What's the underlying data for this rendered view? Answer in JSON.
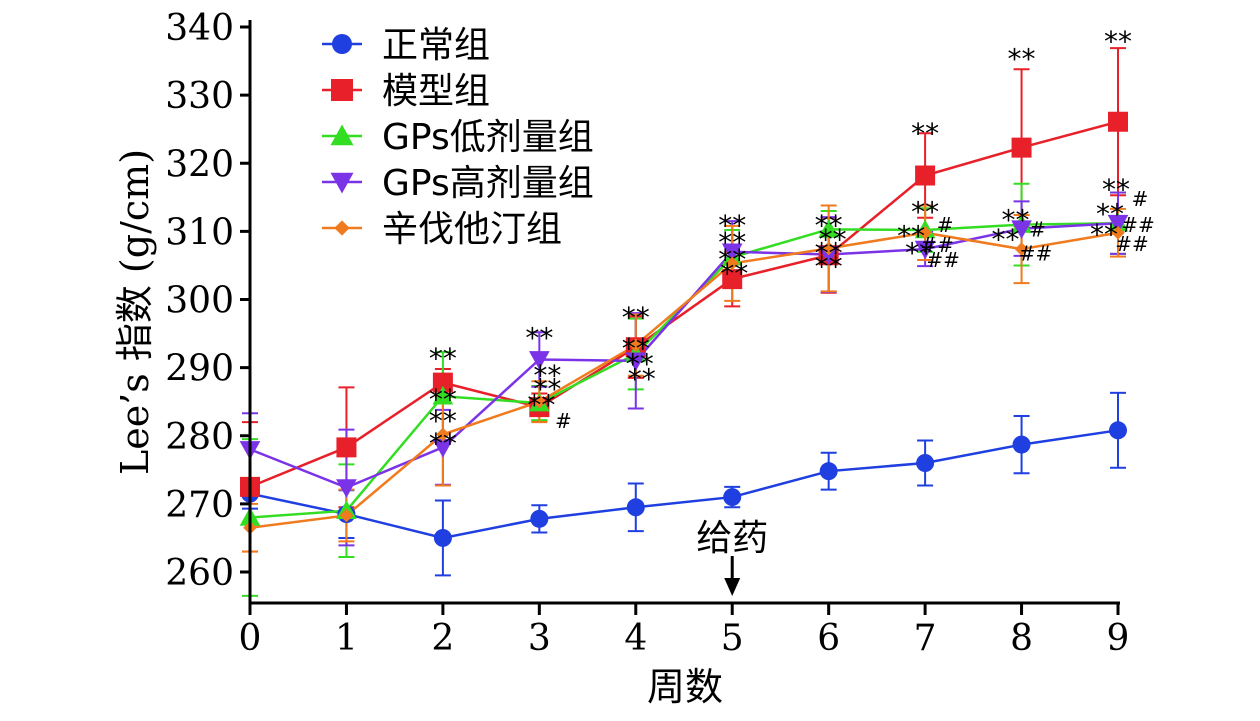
{
  "chart_data": {
    "type": "line",
    "xlabel": "周数",
    "ylabel": "Lee’s 指数 (g/cm)",
    "x": [
      0,
      1,
      2,
      3,
      4,
      5,
      6,
      7,
      8,
      9
    ],
    "xlim": [
      0,
      9
    ],
    "ylim": [
      255,
      340
    ],
    "yticks": [
      260,
      270,
      280,
      290,
      300,
      310,
      320,
      330,
      340
    ],
    "legend_position": "top-left",
    "annotation": {
      "text": "给药",
      "x": 5
    },
    "series": [
      {
        "name": "正常组",
        "color": "#1f3fe0",
        "marker": "circle",
        "values": [
          271.5,
          268.5,
          265,
          267.8,
          269.5,
          271,
          274.8,
          276,
          278.7,
          280.8
        ],
        "errors": [
          2.2,
          3.5,
          5.5,
          2.0,
          3.5,
          1.5,
          2.7,
          3.3,
          4.2,
          5.5
        ]
      },
      {
        "name": "模型组",
        "color": "#e8202a",
        "marker": "square",
        "values": [
          272.5,
          278.3,
          287.8,
          284.2,
          293,
          303,
          306.5,
          318.2,
          322.3,
          326.1
        ],
        "errors": [
          9.5,
          8.8,
          2.0,
          2.0,
          4.5,
          4.0,
          5.5,
          6.2,
          11.5,
          10.8
        ]
      },
      {
        "name": "GPs低剂量组",
        "color": "#33dd22",
        "marker": "triangle-up",
        "values": [
          268,
          269,
          285.8,
          284.8,
          292,
          306.2,
          310.3,
          310.2,
          311,
          311.2
        ],
        "errors": [
          11.5,
          6.8,
          6.5,
          2.5,
          5.2,
          4.0,
          2.7,
          3.2,
          6.0,
          4.5
        ]
      },
      {
        "name": "GPs高剂量组",
        "color": "#7b33e8",
        "marker": "triangle-down",
        "values": [
          278,
          272.4,
          278.3,
          291.2,
          291,
          307,
          306.6,
          307.4,
          310.4,
          311.2
        ],
        "errors": [
          5.3,
          8.5,
          5.5,
          4.0,
          7.0,
          4.5,
          5.5,
          2.5,
          4.0,
          4.5
        ]
      },
      {
        "name": "辛伐他汀组",
        "color": "#f07a1e",
        "marker": "diamond",
        "values": [
          266.5,
          268.3,
          280.2,
          285,
          293.3,
          305.3,
          307.5,
          309.8,
          307.4,
          309.8
        ],
        "errors": [
          3.5,
          3.8,
          7.5,
          3.0,
          4.5,
          5.5,
          6.3,
          4.0,
          5.0,
          3.5
        ]
      }
    ],
    "significance_labels": [
      {
        "x": 2,
        "y": 292.0,
        "text": "**",
        "dx": 0
      },
      {
        "x": 2,
        "y": 286.0,
        "text": "**",
        "dx": 0
      },
      {
        "x": 2,
        "y": 282.8,
        "text": "**",
        "dx": 0
      },
      {
        "x": 2,
        "y": 279.5,
        "text": "**",
        "dx": 0
      },
      {
        "x": 3,
        "y": 295.0,
        "text": "**",
        "dx": 0
      },
      {
        "x": 3,
        "y": 289.5,
        "text": "**",
        "dx": 8
      },
      {
        "x": 3,
        "y": 287.5,
        "text": "**",
        "dx": 8
      },
      {
        "x": 3,
        "y": 285.2,
        "text": "**",
        "dx": 2
      },
      {
        "x": 3,
        "y": 283.2,
        "text": "#",
        "dx": 24
      },
      {
        "x": 4,
        "y": 298.0,
        "text": "**",
        "dx": 0
      },
      {
        "x": 4,
        "y": 293.5,
        "text": "**",
        "dx": 0
      },
      {
        "x": 4,
        "y": 291.2,
        "text": "**",
        "dx": 4
      },
      {
        "x": 4,
        "y": 289.0,
        "text": "**",
        "dx": 6
      },
      {
        "x": 5,
        "y": 311.5,
        "text": "**",
        "dx": 0
      },
      {
        "x": 5,
        "y": 309.0,
        "text": "**",
        "dx": 0
      },
      {
        "x": 5,
        "y": 306.5,
        "text": "**",
        "dx": 0
      },
      {
        "x": 5,
        "y": 304.5,
        "text": "**",
        "dx": 2
      },
      {
        "x": 6,
        "y": 311.5,
        "text": "**",
        "dx": 0
      },
      {
        "x": 6,
        "y": 309.5,
        "text": "**",
        "dx": 4
      },
      {
        "x": 6,
        "y": 307.5,
        "text": "**",
        "dx": 0
      },
      {
        "x": 6,
        "y": 305.5,
        "text": "**",
        "dx": 0
      },
      {
        "x": 7,
        "y": 325.0,
        "text": "**",
        "dx": 0
      },
      {
        "x": 7,
        "y": 313.5,
        "text": "**",
        "dx": 0
      },
      {
        "x": 7,
        "y": 312.0,
        "text": "#",
        "dx": 20
      },
      {
        "x": 7,
        "y": 310.0,
        "text": "**",
        "dx": -14
      },
      {
        "x": 7,
        "y": 309.0,
        "text": "##",
        "dx": 12
      },
      {
        "x": 7,
        "y": 307.5,
        "text": "**",
        "dx": -6
      },
      {
        "x": 7,
        "y": 306.8,
        "text": "##",
        "dx": 18
      },
      {
        "x": 8,
        "y": 336.0,
        "text": "**",
        "dx": 0
      },
      {
        "x": 8,
        "y": 312.3,
        "text": "**",
        "dx": -6
      },
      {
        "x": 8,
        "y": 311.3,
        "text": "#",
        "dx": 16
      },
      {
        "x": 8,
        "y": 309.5,
        "text": "**",
        "dx": -16
      },
      {
        "x": 8,
        "y": 307.8,
        "text": "##",
        "dx": 14
      },
      {
        "x": 9,
        "y": 338.5,
        "text": "**",
        "dx": 0
      },
      {
        "x": 9,
        "y": 316.8,
        "text": "**",
        "dx": -2
      },
      {
        "x": 9,
        "y": 315.8,
        "text": "#",
        "dx": 22
      },
      {
        "x": 9,
        "y": 313.2,
        "text": "**",
        "dx": -8
      },
      {
        "x": 9,
        "y": 312.0,
        "text": "##",
        "dx": 20
      },
      {
        "x": 9,
        "y": 310.2,
        "text": "**",
        "dx": -14
      },
      {
        "x": 9,
        "y": 309.2,
        "text": "##",
        "dx": 14
      }
    ]
  }
}
